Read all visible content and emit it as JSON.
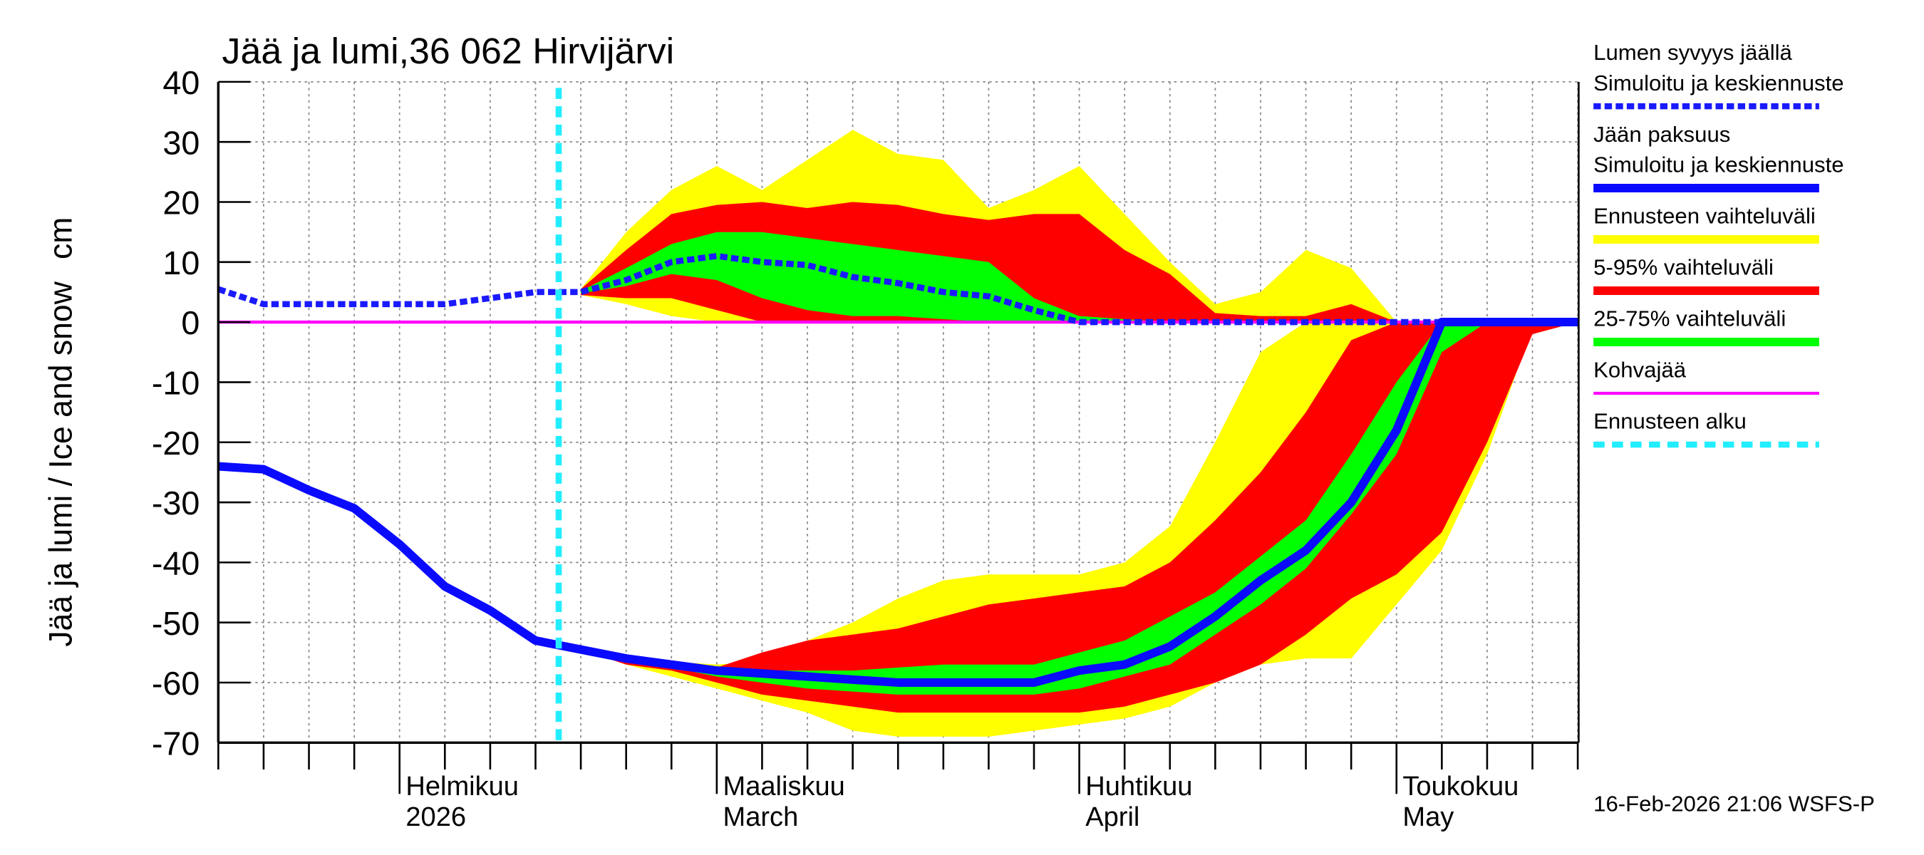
{
  "chart_data": {
    "type": "line",
    "title": "Jää ja lumi,36 062 Hirvijärvi",
    "y_label": "Jää ja lumi / Ice and snow",
    "y_unit": "cm",
    "footer": "16-Feb-2026 21:06 WSFS-P",
    "ylim": [
      -70,
      40
    ],
    "yticks": [
      -70,
      -60,
      -50,
      -40,
      -30,
      -20,
      -10,
      0,
      10,
      20,
      30,
      40
    ],
    "grid": true,
    "legend": "right",
    "categories": [
      null,
      null,
      null,
      null,
      [
        "Helmikuu",
        "2026"
      ],
      null,
      null,
      null,
      null,
      null,
      null,
      [
        "Maaliskuu",
        "March"
      ],
      null,
      null,
      null,
      null,
      null,
      null,
      null,
      [
        "Huhtikuu",
        "April"
      ],
      null,
      null,
      null,
      null,
      null,
      null,
      [
        "Toukokuu",
        "May"
      ],
      null,
      null,
      null,
      null
    ],
    "series": [
      {
        "name": [
          "Lumen syvyys jäällä",
          "Simuloitu ja keskiennuste"
        ],
        "color": "#1a1aff",
        "style": "dotted",
        "values": [
          5.5,
          3,
          3,
          3,
          3,
          3,
          4,
          5,
          5,
          7,
          10,
          11,
          10,
          9.5,
          7.5,
          6.5,
          5,
          4.3,
          2,
          0,
          0,
          0,
          0,
          0,
          0,
          0,
          0,
          0,
          0,
          0,
          0
        ]
      },
      {
        "name": [
          "Jään paksuus",
          "Simuloitu ja keskiennuste"
        ],
        "color": "#0a0aff",
        "style": "solid",
        "values": [
          -24,
          -24.5,
          -28,
          -31,
          -37,
          -44,
          -48,
          -53,
          -54.5,
          -56,
          -57,
          -58,
          -58.5,
          -59,
          -59.5,
          -60,
          -60,
          -60,
          -60,
          -58,
          -57,
          -54,
          -49,
          -43,
          -38,
          -30,
          -18,
          0,
          0,
          0,
          0
        ]
      },
      {
        "name": [
          "Kohvajää"
        ],
        "color": "#ff00ff",
        "style": "thin",
        "values": [
          0,
          0,
          0,
          0,
          0,
          0,
          0,
          0,
          0,
          0,
          0,
          0,
          0,
          0,
          0,
          0,
          0,
          0,
          0,
          0,
          0,
          0,
          0,
          0,
          0,
          0,
          0,
          0,
          0,
          0,
          0
        ]
      }
    ],
    "bands": [
      {
        "name": "Ennusteen vaihteluväli",
        "color": "#ffff00",
        "snow_high": [
          null,
          null,
          null,
          null,
          null,
          null,
          null,
          null,
          5.5,
          15,
          22,
          26,
          22,
          27,
          32,
          28,
          27,
          19,
          22,
          26,
          18,
          10,
          3,
          5,
          12,
          9,
          0,
          0,
          0,
          0,
          0
        ],
        "snow_low": [
          null,
          null,
          null,
          null,
          null,
          null,
          null,
          null,
          4.5,
          3,
          1,
          0,
          0,
          0,
          0,
          0,
          0,
          0,
          0,
          0,
          0,
          0,
          0,
          0,
          0,
          0,
          0,
          0,
          0,
          0,
          0
        ],
        "ice_high": [
          null,
          null,
          null,
          null,
          null,
          null,
          null,
          null,
          -54.5,
          -56,
          -56.5,
          -57,
          -56.5,
          -53,
          -50,
          -46,
          -43,
          -42,
          -42,
          -42,
          -40,
          -34,
          -20,
          -5,
          0,
          0,
          0,
          0,
          0,
          0,
          0
        ],
        "ice_low": [
          null,
          null,
          null,
          null,
          null,
          null,
          null,
          null,
          -54.5,
          -57,
          -59,
          -61,
          -63,
          -65,
          -68,
          -69,
          -69,
          -69,
          -68,
          -67,
          -66,
          -64,
          -60,
          -57,
          -56,
          -56,
          -47,
          -38,
          -22,
          -1,
          0
        ]
      },
      {
        "name": "5-95% vaihteluväli",
        "color": "#ff0000",
        "snow_high": [
          null,
          null,
          null,
          null,
          null,
          null,
          null,
          null,
          5.5,
          12,
          18,
          19.5,
          20,
          19,
          20,
          19.5,
          18,
          17,
          18,
          18,
          12,
          8,
          1.5,
          1,
          1,
          3,
          0,
          0,
          0,
          0,
          0
        ],
        "snow_low": [
          null,
          null,
          null,
          null,
          null,
          null,
          null,
          null,
          4.5,
          4,
          4,
          2,
          0,
          0,
          0,
          0,
          0,
          0,
          0,
          0,
          0,
          0,
          0,
          0,
          0,
          0,
          0,
          0,
          0,
          0,
          0
        ],
        "ice_high": [
          null,
          null,
          null,
          null,
          null,
          null,
          null,
          null,
          -54.5,
          -56,
          -57,
          -57.5,
          -55,
          -53,
          -52,
          -51,
          -49,
          -47,
          -46,
          -45,
          -44,
          -40,
          -33,
          -25,
          -15,
          -3,
          0,
          0,
          0,
          0,
          0
        ],
        "ice_low": [
          null,
          null,
          null,
          null,
          null,
          null,
          null,
          null,
          -54.5,
          -57,
          -58,
          -60,
          -62,
          -63,
          -64,
          -65,
          -65,
          -65,
          -65,
          -65,
          -64,
          -62,
          -60,
          -57,
          -52,
          -46,
          -42,
          -35,
          -20,
          -2,
          0
        ]
      },
      {
        "name": "25-75% vaihteluväli",
        "color": "#00ff00",
        "snow_high": [
          null,
          null,
          null,
          null,
          null,
          null,
          null,
          null,
          5.2,
          9,
          13,
          15,
          15,
          14,
          13,
          12,
          11,
          10,
          4,
          1,
          0.5,
          0,
          0,
          0,
          0,
          0,
          0,
          0,
          0,
          0,
          0
        ],
        "snow_low": [
          null,
          null,
          null,
          null,
          null,
          null,
          null,
          null,
          4.8,
          6,
          8,
          7,
          4,
          2,
          1,
          1,
          0.5,
          0,
          0,
          0,
          0,
          0,
          0,
          0,
          0,
          0,
          0,
          0,
          0,
          0,
          0
        ],
        "ice_high": [
          null,
          null,
          null,
          null,
          null,
          null,
          null,
          null,
          -54.5,
          -56,
          -57,
          -58,
          -58,
          -58,
          -58,
          -57.5,
          -57,
          -57,
          -57,
          -55,
          -53,
          -49,
          -45,
          -39,
          -33,
          -22,
          -10,
          0,
          0,
          0,
          0
        ],
        "ice_low": [
          null,
          null,
          null,
          null,
          null,
          null,
          null,
          null,
          -54.5,
          -56.5,
          -57.5,
          -59,
          -60,
          -61,
          -61.5,
          -62,
          -62,
          -62,
          -62,
          -61,
          -59,
          -57,
          -52,
          -47,
          -41,
          -32,
          -22,
          -5,
          0,
          0,
          0
        ]
      }
    ],
    "forecast_start_label": "Ennusteen alku",
    "forecast_start_color": "#22eeff"
  }
}
